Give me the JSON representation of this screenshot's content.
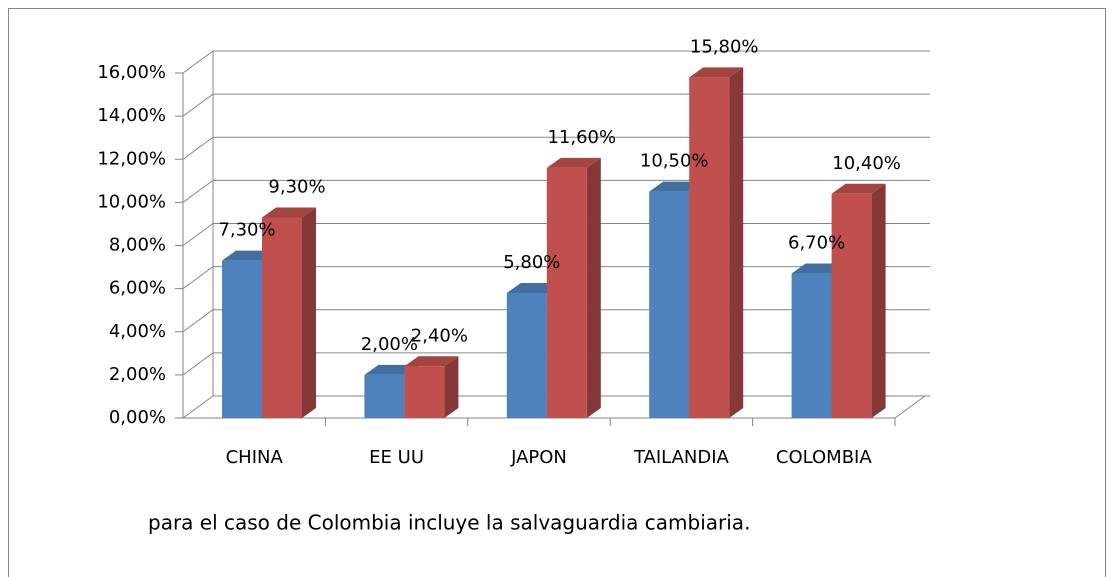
{
  "chart_data": {
    "type": "bar3d",
    "categories": [
      "CHINA",
      "EE UU",
      "JAPON",
      "TAILANDIA",
      "COLOMBIA"
    ],
    "series": [
      {
        "color": "#4f81bd",
        "values": [
          7.3,
          2.0,
          5.8,
          10.5,
          6.7
        ],
        "value_labels": [
          "7,30%",
          "2,00%",
          "5,80%",
          "10,50%",
          "6,70%"
        ]
      },
      {
        "color": "#c0504d",
        "values": [
          9.3,
          2.4,
          11.6,
          15.8,
          10.4
        ],
        "value_labels": [
          "9,30%",
          "2,40%",
          "11,60%",
          "15,80%",
          "10,40%"
        ]
      }
    ],
    "ylim": [
      0,
      16
    ],
    "yticks": [
      {
        "value": 0,
        "label": "0,00%"
      },
      {
        "value": 2,
        "label": "2,00%"
      },
      {
        "value": 4,
        "label": "4,00%"
      },
      {
        "value": 6,
        "label": "6,00%"
      },
      {
        "value": 8,
        "label": "8,00%"
      },
      {
        "value": 10,
        "label": "10,00%"
      },
      {
        "value": 12,
        "label": "12,00%"
      },
      {
        "value": 14,
        "label": "14,00%"
      },
      {
        "value": 16,
        "label": "16,00%"
      }
    ],
    "grid": true,
    "caption": "para el caso de Colombia incluye la salvaguardia cambiaria."
  }
}
